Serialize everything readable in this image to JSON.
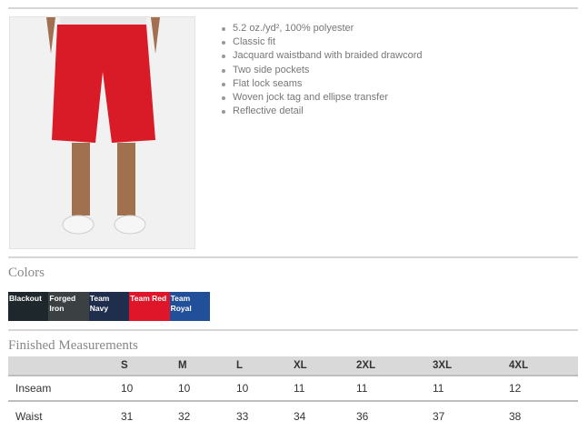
{
  "product": {
    "image_alt": "red athletic shorts",
    "features": [
      "5.2 oz./yd², 100% polyester",
      "Classic fit",
      "Jacquard waistband with braided drawcord",
      "Two side pockets",
      "Flat lock seams",
      "Woven jock tag and ellipse transfer",
      "Reflective detail"
    ]
  },
  "colors": {
    "title": "Colors",
    "swatches": [
      {
        "label": "Blackout",
        "hex": "#1e272c"
      },
      {
        "label": "Forged Iron",
        "hex": "#3b4143"
      },
      {
        "label": "Team Navy",
        "hex": "#1f2e4c"
      },
      {
        "label": "Team Red",
        "hex": "#df1529"
      },
      {
        "label": "Team Royal",
        "hex": "#224f9a"
      }
    ]
  },
  "measurements": {
    "title": "Finished Measurements",
    "sizes": [
      "S",
      "M",
      "L",
      "XL",
      "2XL",
      "3XL",
      "4XL"
    ],
    "rows": [
      {
        "label": "Inseam",
        "values": [
          "10",
          "10",
          "10",
          "11",
          "11",
          "11",
          "12"
        ]
      },
      {
        "label": "Waist",
        "values": [
          "31",
          "32",
          "33",
          "34",
          "36",
          "37",
          "38"
        ]
      }
    ]
  }
}
